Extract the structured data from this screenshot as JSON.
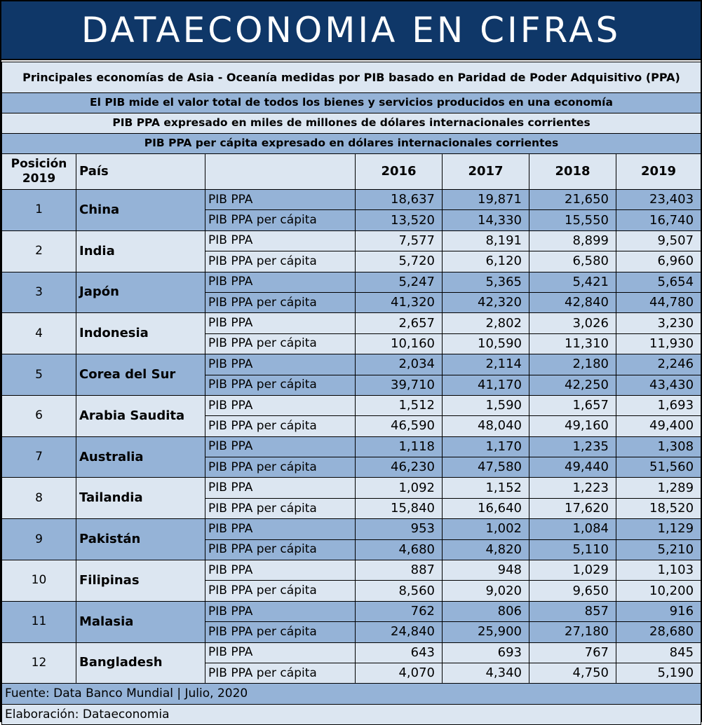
{
  "header": {
    "title": "DATAECONOMIA EN CIFRAS",
    "subtitle1": "Principales economías de Asia - Oceanía medidas por PIB basado en Paridad de Poder Adquisitivo (PPA)",
    "subtitle2": "El PIB mide el valor total de todos los bienes y servicios producidos en una economía",
    "subtitle3": "PIB PPA expresado en miles de millones de dólares internacionales corrientes",
    "subtitle4": "PIB PPA per cápita expresado en dólares internacionales corrientes"
  },
  "table": {
    "col_position": "Posición 2019",
    "col_country": "País",
    "years": [
      "2016",
      "2017",
      "2018",
      "2019"
    ],
    "label_gdp": "PIB PPA",
    "label_pc": "PIB PPA per cápita",
    "rows": [
      {
        "pos": "1",
        "country": "China",
        "gdp": [
          "18,637",
          "19,871",
          "21,650",
          "23,403"
        ],
        "pc": [
          "13,520",
          "14,330",
          "15,550",
          "16,740"
        ]
      },
      {
        "pos": "2",
        "country": "India",
        "gdp": [
          "7,577",
          "8,191",
          "8,899",
          "9,507"
        ],
        "pc": [
          "5,720",
          "6,120",
          "6,580",
          "6,960"
        ]
      },
      {
        "pos": "3",
        "country": "Japón",
        "gdp": [
          "5,247",
          "5,365",
          "5,421",
          "5,654"
        ],
        "pc": [
          "41,320",
          "42,320",
          "42,840",
          "44,780"
        ]
      },
      {
        "pos": "4",
        "country": "Indonesia",
        "gdp": [
          "2,657",
          "2,802",
          "3,026",
          "3,230"
        ],
        "pc": [
          "10,160",
          "10,590",
          "11,310",
          "11,930"
        ]
      },
      {
        "pos": "5",
        "country": "Corea del Sur",
        "gdp": [
          "2,034",
          "2,114",
          "2,180",
          "2,246"
        ],
        "pc": [
          "39,710",
          "41,170",
          "42,250",
          "43,430"
        ]
      },
      {
        "pos": "6",
        "country": "Arabia Saudita",
        "gdp": [
          "1,512",
          "1,590",
          "1,657",
          "1,693"
        ],
        "pc": [
          "46,590",
          "48,040",
          "49,160",
          "49,400"
        ]
      },
      {
        "pos": "7",
        "country": "Australia",
        "gdp": [
          "1,118",
          "1,170",
          "1,235",
          "1,308"
        ],
        "pc": [
          "46,230",
          "47,580",
          "49,440",
          "51,560"
        ]
      },
      {
        "pos": "8",
        "country": "Tailandia",
        "gdp": [
          "1,092",
          "1,152",
          "1,223",
          "1,289"
        ],
        "pc": [
          "15,840",
          "16,640",
          "17,620",
          "18,520"
        ]
      },
      {
        "pos": "9",
        "country": "Pakistán",
        "gdp": [
          "953",
          "1,002",
          "1,084",
          "1,129"
        ],
        "pc": [
          "4,680",
          "4,820",
          "5,110",
          "5,210"
        ]
      },
      {
        "pos": "10",
        "country": "Filipinas",
        "gdp": [
          "887",
          "948",
          "1,029",
          "1,103"
        ],
        "pc": [
          "8,560",
          "9,020",
          "9,650",
          "10,200"
        ]
      },
      {
        "pos": "11",
        "country": "Malasia",
        "gdp": [
          "762",
          "806",
          "857",
          "916"
        ],
        "pc": [
          "24,840",
          "25,900",
          "27,180",
          "28,680"
        ]
      },
      {
        "pos": "12",
        "country": "Bangladesh",
        "gdp": [
          "643",
          "693",
          "767",
          "845"
        ],
        "pc": [
          "4,070",
          "4,340",
          "4,750",
          "5,190"
        ]
      }
    ]
  },
  "footer": {
    "source": "Fuente: Data Banco Mundial | Julio, 2020",
    "credit": "Elaboración: Dataeconomia"
  },
  "colors": {
    "banner": "#0f3768",
    "light_row": "#dce6f1",
    "mid_row": "#95b3d7"
  }
}
